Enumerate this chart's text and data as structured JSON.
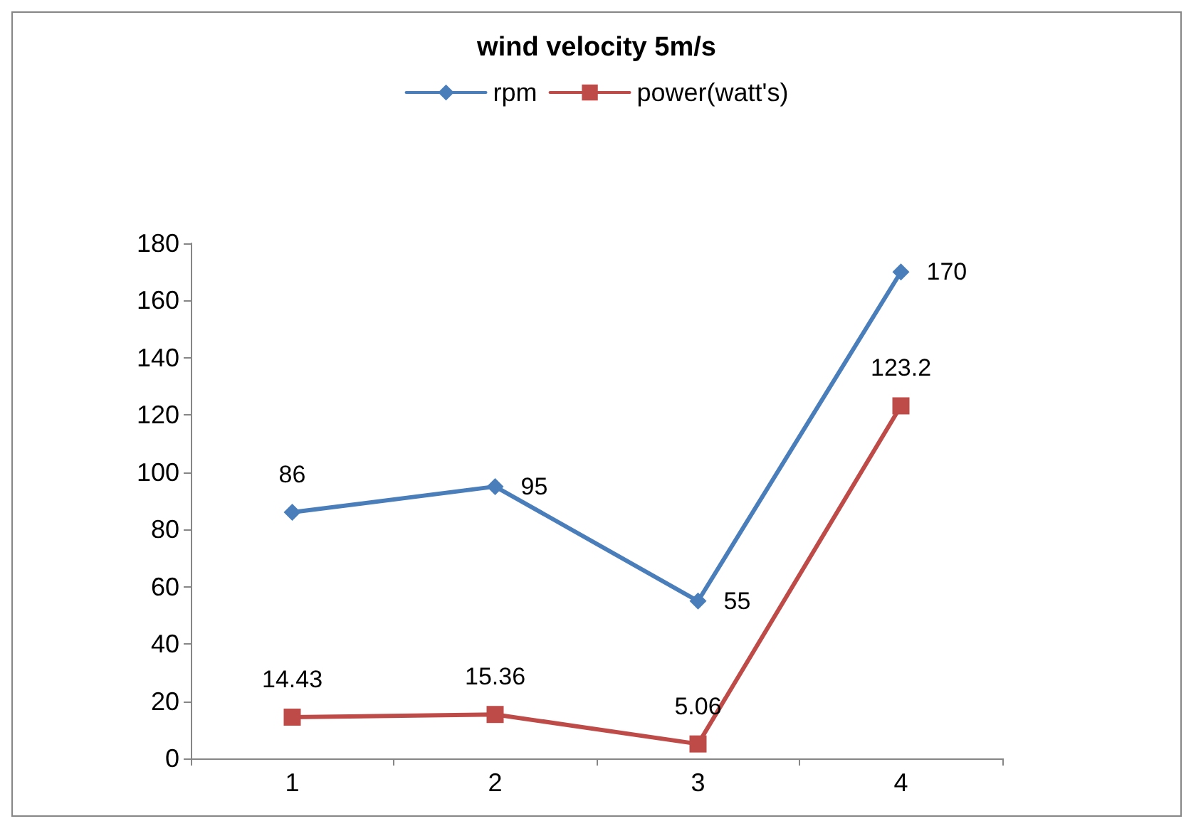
{
  "chart_data": {
    "type": "line",
    "title": "wind velocity 5m/s",
    "categories": [
      "1",
      "2",
      "3",
      "4"
    ],
    "series": [
      {
        "name": "rpm",
        "color": "#4a7ebb",
        "values": [
          86,
          95,
          55,
          170
        ],
        "marker": "diamond"
      },
      {
        "name": "power(watt's)",
        "color": "#be4b48",
        "values": [
          14.43,
          15.36,
          5.06,
          123.2
        ],
        "marker": "square"
      }
    ],
    "ylim": [
      0,
      180
    ],
    "yticks": [
      0,
      20,
      40,
      60,
      80,
      100,
      120,
      140,
      160,
      180
    ],
    "grid": false,
    "legend": "top",
    "data_labels": true,
    "line_style": "solid"
  }
}
